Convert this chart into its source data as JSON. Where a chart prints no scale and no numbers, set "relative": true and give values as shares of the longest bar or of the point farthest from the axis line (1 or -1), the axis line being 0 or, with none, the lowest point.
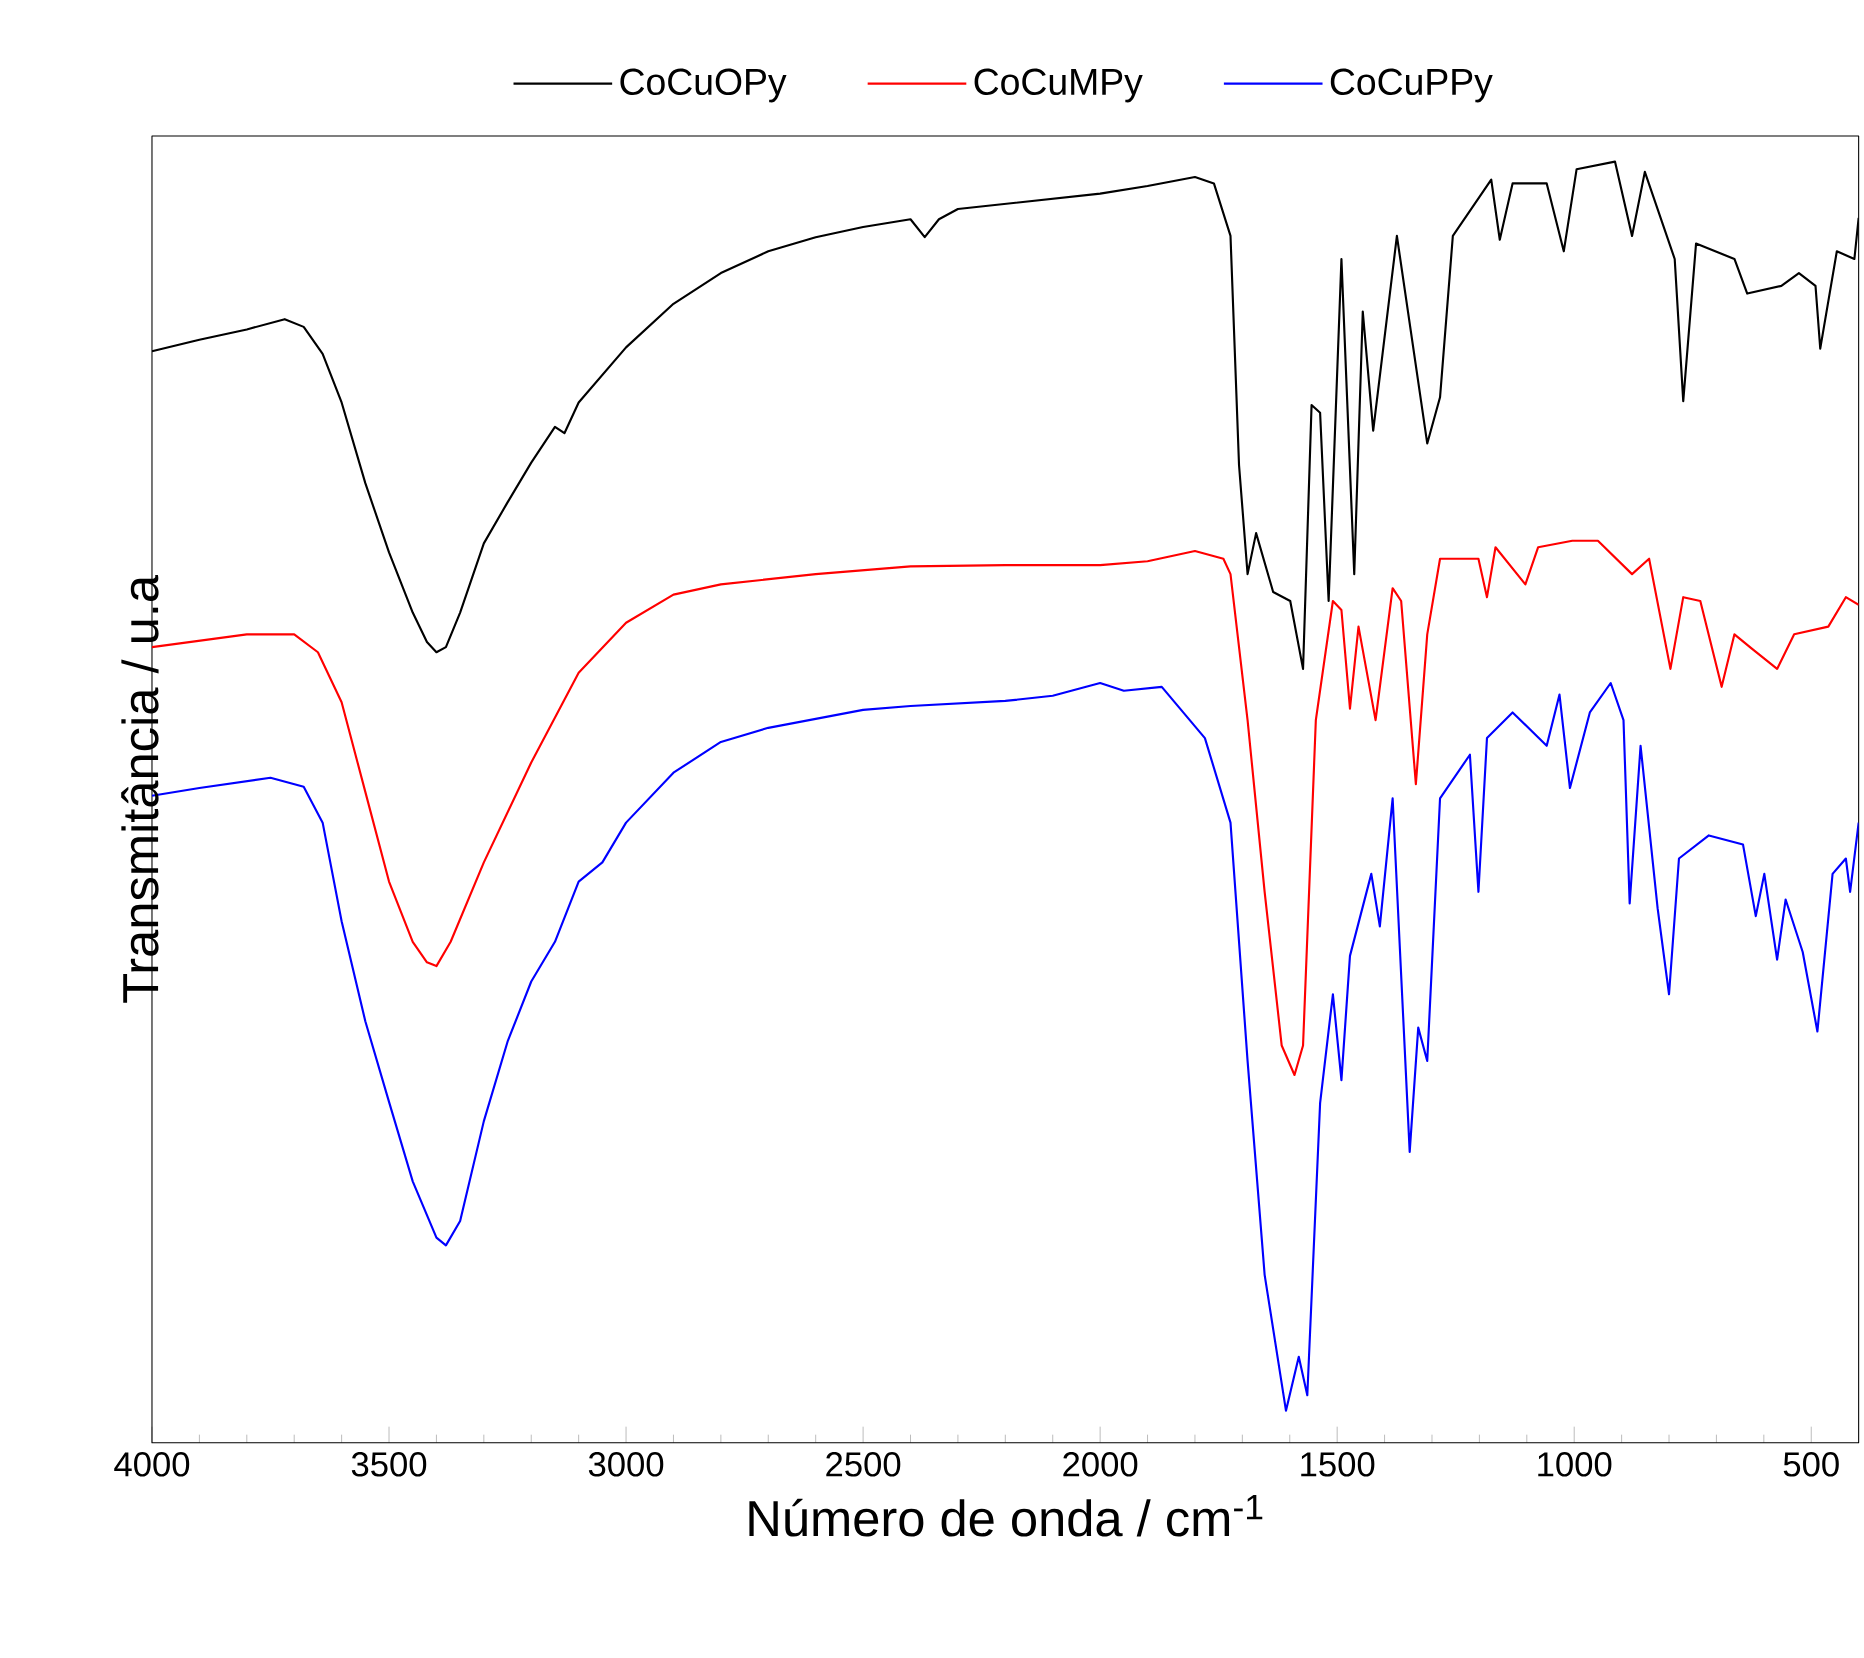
{
  "chart_data": {
    "type": "line",
    "relative": true,
    "xlabel": "Número de onda / cm$^{-1}$",
    "ylabel": "Transmitância / u.a",
    "xlim": [
      4000,
      400
    ],
    "xticks": [
      4000,
      3500,
      3000,
      2500,
      2000,
      1500,
      1000,
      500
    ],
    "legend": "top",
    "series": [
      {
        "name": "CoCuOPy",
        "color": "#000000",
        "x": [
          4000,
          3900,
          3800,
          3720,
          3680,
          3640,
          3600,
          3550,
          3500,
          3450,
          3420,
          3400,
          3380,
          3350,
          3300,
          3250,
          3200,
          3150,
          3130,
          3100,
          3000,
          2900,
          2800,
          2700,
          2600,
          2500,
          2400,
          2370,
          2340,
          2300,
          2200,
          2000,
          1900,
          1800,
          1760,
          1725,
          1707,
          1689,
          1671,
          1635,
          1599,
          1572,
          1554,
          1536,
          1518,
          1491,
          1464,
          1446,
          1424,
          1374,
          1310,
          1283,
          1256,
          1175,
          1157,
          1130,
          1058,
          1022,
          995,
          914,
          878,
          851,
          788,
          770,
          743,
          662,
          635,
          563,
          526,
          491,
          481,
          446,
          409,
          400
        ],
        "values": [
          0.852,
          0.861,
          0.869,
          0.877,
          0.871,
          0.85,
          0.812,
          0.749,
          0.695,
          0.648,
          0.625,
          0.617,
          0.621,
          0.648,
          0.702,
          0.734,
          0.765,
          0.793,
          0.788,
          0.812,
          0.855,
          0.889,
          0.913,
          0.93,
          0.941,
          0.949,
          0.955,
          0.941,
          0.955,
          0.963,
          0.967,
          0.975,
          0.981,
          0.988,
          0.983,
          0.942,
          0.763,
          0.678,
          0.71,
          0.664,
          0.657,
          0.604,
          0.81,
          0.804,
          0.657,
          0.924,
          0.678,
          0.883,
          0.79,
          0.942,
          0.78,
          0.816,
          0.942,
          0.986,
          0.939,
          0.983,
          0.983,
          0.93,
          0.994,
          1.0,
          0.942,
          0.992,
          0.924,
          0.813,
          0.936,
          0.924,
          0.897,
          0.903,
          0.913,
          0.903,
          0.854,
          0.93,
          0.924,
          0.956
        ]
      },
      {
        "name": "CoCuMPy",
        "color": "#ff0000",
        "x": [
          4000,
          3800,
          3700,
          3650,
          3600,
          3550,
          3500,
          3450,
          3420,
          3400,
          3370,
          3300,
          3200,
          3100,
          3000,
          2900,
          2800,
          2600,
          2400,
          2200,
          2000,
          1900,
          1800,
          1740,
          1725,
          1689,
          1653,
          1617,
          1590,
          1572,
          1545,
          1509,
          1491,
          1473,
          1455,
          1419,
          1383,
          1365,
          1334,
          1310,
          1283,
          1202,
          1184,
          1166,
          1103,
          1076,
          1004,
          950,
          878,
          842,
          797,
          770,
          734,
          689,
          662,
          626,
          572,
          536,
          464,
          427,
          400
        ],
        "values": [
          0.621,
          0.631,
          0.631,
          0.617,
          0.578,
          0.508,
          0.438,
          0.391,
          0.375,
          0.372,
          0.391,
          0.453,
          0.531,
          0.601,
          0.64,
          0.662,
          0.67,
          0.678,
          0.684,
          0.685,
          0.685,
          0.688,
          0.696,
          0.69,
          0.678,
          0.564,
          0.43,
          0.31,
          0.287,
          0.31,
          0.564,
          0.657,
          0.65,
          0.573,
          0.637,
          0.564,
          0.667,
          0.657,
          0.514,
          0.631,
          0.69,
          0.69,
          0.66,
          0.699,
          0.67,
          0.699,
          0.704,
          0.704,
          0.678,
          0.69,
          0.604,
          0.66,
          0.657,
          0.59,
          0.631,
          0.62,
          0.604,
          0.631,
          0.637,
          0.66,
          0.654
        ]
      },
      {
        "name": "CoCuPPy",
        "color": "#0000ff",
        "x": [
          4000,
          3900,
          3750,
          3680,
          3640,
          3600,
          3550,
          3500,
          3450,
          3400,
          3380,
          3350,
          3300,
          3250,
          3200,
          3150,
          3100,
          3050,
          3000,
          2900,
          2800,
          2700,
          2600,
          2500,
          2400,
          2200,
          2100,
          2000,
          1950,
          1870,
          1779,
          1725,
          1689,
          1653,
          1608,
          1581,
          1563,
          1536,
          1509,
          1491,
          1473,
          1428,
          1410,
          1383,
          1347,
          1329,
          1310,
          1283,
          1220,
          1202,
          1184,
          1130,
          1058,
          1031,
          1009,
          967,
          923,
          896,
          883,
          860,
          824,
          800,
          779,
          716,
          644,
          617,
          599,
          572,
          554,
          518,
          487,
          455,
          427,
          418,
          400
        ],
        "values": [
          0.505,
          0.511,
          0.519,
          0.512,
          0.484,
          0.407,
          0.329,
          0.266,
          0.204,
          0.16,
          0.154,
          0.173,
          0.251,
          0.313,
          0.36,
          0.391,
          0.438,
          0.453,
          0.484,
          0.523,
          0.547,
          0.558,
          0.565,
          0.572,
          0.575,
          0.579,
          0.583,
          0.593,
          0.587,
          0.59,
          0.55,
          0.484,
          0.298,
          0.131,
          0.025,
          0.067,
          0.037,
          0.265,
          0.35,
          0.283,
          0.38,
          0.444,
          0.403,
          0.503,
          0.227,
          0.324,
          0.298,
          0.503,
          0.537,
          0.43,
          0.55,
          0.57,
          0.544,
          0.584,
          0.511,
          0.57,
          0.593,
          0.564,
          0.421,
          0.544,
          0.417,
          0.35,
          0.456,
          0.474,
          0.467,
          0.411,
          0.444,
          0.377,
          0.424,
          0.383,
          0.321,
          0.444,
          0.456,
          0.43,
          0.484
        ]
      }
    ]
  }
}
